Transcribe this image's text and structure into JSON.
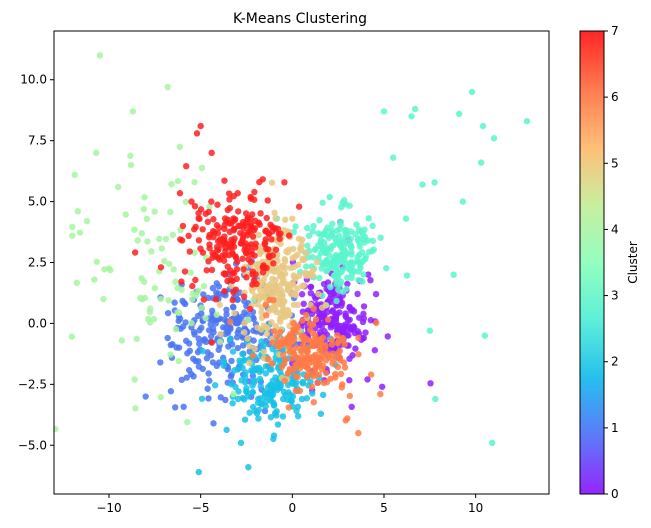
{
  "chart_data": {
    "type": "scatter",
    "title": "K-Means Clustering",
    "xlabel": "",
    "ylabel": "",
    "xlim": [
      -13,
      14
    ],
    "ylim": [
      -7,
      12
    ],
    "x_ticks": [
      -10,
      -5,
      0,
      5,
      10
    ],
    "y_ticks": [
      -5.0,
      -2.5,
      0.0,
      2.5,
      5.0,
      7.5,
      10.0
    ],
    "grid": false,
    "colorbar": {
      "label": "Cluster",
      "ticks": [
        0,
        1,
        2,
        3,
        4,
        5,
        6,
        7
      ],
      "colormap": "rainbow",
      "range": [
        0,
        7
      ]
    },
    "clusters": [
      {
        "id": 0,
        "color": "#8000ff",
        "center": [
          2.2,
          0.2
        ],
        "spread": [
          0.9,
          0.9
        ],
        "angle": -40,
        "count": 230
      },
      {
        "id": 1,
        "color": "#3f5ff7",
        "center": [
          -3.7,
          -0.2
        ],
        "spread": [
          1.5,
          1.2
        ],
        "angle": 0,
        "count": 230
      },
      {
        "id": 2,
        "color": "#00b5eb",
        "center": [
          -1.0,
          -2.3
        ],
        "spread": [
          1.2,
          0.9
        ],
        "angle": 0,
        "count": 200
      },
      {
        "id": 3,
        "color": "#40ecd3",
        "center": [
          2.5,
          2.8
        ],
        "spread": [
          0.9,
          0.8
        ],
        "angle": 0,
        "count": 200
      },
      {
        "id": 4,
        "color": "#7ffeb6",
        "center": [
          -7.0,
          2.2
        ],
        "spread": [
          2.2,
          2.3
        ],
        "angle": 0,
        "count": 80
      },
      {
        "id": 5,
        "color": "#c0eb8d",
        "center": [
          -0.8,
          1.7
        ],
        "spread": [
          0.9,
          1.3
        ],
        "angle": 0,
        "count": 260
      },
      {
        "id": 6,
        "color": "#ff7e41",
        "center": [
          1.0,
          -1.3
        ],
        "spread": [
          1.1,
          0.7
        ],
        "angle": -25,
        "count": 180
      },
      {
        "id": 7,
        "color": "#ff0000",
        "center": [
          -3.0,
          3.3
        ],
        "spread": [
          1.3,
          1.0
        ],
        "angle": 0,
        "count": 220
      }
    ],
    "display_colors": {
      "0": "#8f20ff",
      "1": "#4a74f2",
      "2": "#17c1e6",
      "3": "#5af5cd",
      "4": "#a6f5a0",
      "5": "#e8c882",
      "6": "#ff7a45",
      "7": "#ff2020"
    },
    "outliers": [
      {
        "c": 4,
        "x": -10.5,
        "y": 11.0
      },
      {
        "c": 4,
        "x": -6.8,
        "y": 9.7
      },
      {
        "c": 4,
        "x": -10.7,
        "y": 7.0
      },
      {
        "c": 4,
        "x": -8.7,
        "y": 8.7
      },
      {
        "c": 4,
        "x": -11.7,
        "y": 4.6
      },
      {
        "c": 4,
        "x": -11.2,
        "y": 4.2
      },
      {
        "c": 4,
        "x": -12.0,
        "y": 3.6
      },
      {
        "c": 4,
        "x": -10.8,
        "y": 1.8
      },
      {
        "c": 4,
        "x": -10.3,
        "y": 1.0
      },
      {
        "c": 4,
        "x": -9.5,
        "y": 5.6
      },
      {
        "c": 4,
        "x": -9.3,
        "y": -0.7
      },
      {
        "c": 4,
        "x": -8.6,
        "y": -2.3
      },
      {
        "c": 4,
        "x": -8.2,
        "y": 1.0
      },
      {
        "c": 4,
        "x": -8.8,
        "y": 6.5
      },
      {
        "c": 3,
        "x": 5.0,
        "y": 8.7
      },
      {
        "c": 3,
        "x": 6.7,
        "y": 8.8
      },
      {
        "c": 3,
        "x": 6.5,
        "y": 8.5
      },
      {
        "c": 3,
        "x": 9.1,
        "y": 8.6
      },
      {
        "c": 3,
        "x": 9.8,
        "y": 9.5
      },
      {
        "c": 3,
        "x": 10.4,
        "y": 8.1
      },
      {
        "c": 3,
        "x": 11.0,
        "y": 7.6
      },
      {
        "c": 3,
        "x": 12.8,
        "y": 8.3
      },
      {
        "c": 3,
        "x": 10.3,
        "y": 6.6
      },
      {
        "c": 3,
        "x": 10.5,
        "y": -0.5
      },
      {
        "c": 3,
        "x": 10.9,
        "y": -4.9
      },
      {
        "c": 3,
        "x": 7.8,
        "y": -3.1
      },
      {
        "c": 3,
        "x": 7.5,
        "y": -0.3
      },
      {
        "c": 3,
        "x": 9.3,
        "y": 5.0
      },
      {
        "c": 3,
        "x": 8.8,
        "y": 2.0
      },
      {
        "c": 3,
        "x": 6.2,
        "y": 4.3
      },
      {
        "c": 3,
        "x": 7.1,
        "y": 5.7
      },
      {
        "c": 3,
        "x": 5.5,
        "y": 6.8
      },
      {
        "c": 7,
        "x": -5.0,
        "y": 8.1
      },
      {
        "c": 7,
        "x": -5.2,
        "y": 7.8
      },
      {
        "c": 7,
        "x": -4.4,
        "y": 7.0
      },
      {
        "c": 7,
        "x": -1.8,
        "y": 5.8
      },
      {
        "c": 7,
        "x": -5.5,
        "y": 5.0
      },
      {
        "c": 2,
        "x": -5.1,
        "y": -6.1
      },
      {
        "c": 2,
        "x": -2.4,
        "y": -5.9
      },
      {
        "c": 2,
        "x": -2.8,
        "y": -4.9
      },
      {
        "c": 2,
        "x": -1.0,
        "y": -4.6
      },
      {
        "c": 2,
        "x": -0.5,
        "y": -3.1
      },
      {
        "c": 1,
        "x": -8.0,
        "y": -3.0
      },
      {
        "c": 1,
        "x": -7.2,
        "y": -1.6
      },
      {
        "c": 1,
        "x": -4.3,
        "y": -4.1
      },
      {
        "c": 1,
        "x": -6.8,
        "y": -0.6
      },
      {
        "c": 6,
        "x": 3.6,
        "y": -4.5
      },
      {
        "c": 6,
        "x": 3.0,
        "y": -3.9
      },
      {
        "c": 6,
        "x": 4.8,
        "y": -2.9
      },
      {
        "c": 6,
        "x": 4.3,
        "y": -2.1
      },
      {
        "c": 0,
        "x": 4.9,
        "y": -2.6
      },
      {
        "c": 0,
        "x": 4.1,
        "y": -2.3
      },
      {
        "c": 0,
        "x": 4.5,
        "y": -1.1
      },
      {
        "c": 0,
        "x": 3.9,
        "y": -0.6
      },
      {
        "c": 5,
        "x": 0.0,
        "y": 4.3
      }
    ]
  }
}
